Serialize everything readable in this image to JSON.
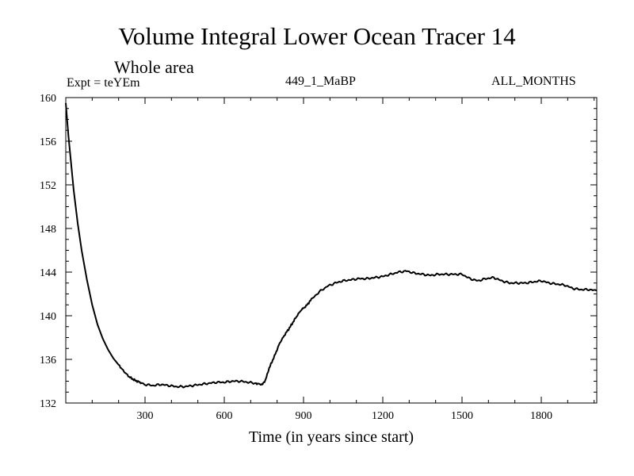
{
  "header": {
    "title": "Volume Integral Lower Ocean Tracer 14",
    "subtitle": "Whole area",
    "expt_label": "Expt = teYEm",
    "center_label": "449_1_MaBP",
    "right_label": "ALL_MONTHS"
  },
  "colors": {
    "line": "#000000",
    "axes": "#000000",
    "background": "#ffffff"
  },
  "chart_data": {
    "type": "line",
    "title": "Volume Integral Lower Ocean Tracer 14",
    "xlabel": "Time (in years since start)",
    "ylabel": "",
    "xlim": [
      0,
      2010
    ],
    "ylim": [
      132,
      160
    ],
    "grid": false,
    "xticks": [
      300,
      600,
      900,
      1200,
      1500,
      1800
    ],
    "yticks": [
      132,
      136,
      140,
      144,
      148,
      152,
      156,
      160
    ],
    "series": [
      {
        "name": "Lower Ocean Tracer 14",
        "x": [
          0,
          10,
          20,
          30,
          45,
          60,
          80,
          100,
          120,
          140,
          160,
          180,
          200,
          220,
          240,
          260,
          280,
          300,
          330,
          360,
          390,
          420,
          450,
          480,
          510,
          540,
          570,
          600,
          630,
          660,
          690,
          720,
          740,
          755,
          770,
          790,
          810,
          830,
          850,
          870,
          890,
          910,
          930,
          960,
          990,
          1020,
          1050,
          1080,
          1110,
          1140,
          1170,
          1200,
          1230,
          1260,
          1290,
          1320,
          1350,
          1380,
          1410,
          1440,
          1470,
          1500,
          1530,
          1560,
          1590,
          1620,
          1650,
          1680,
          1710,
          1740,
          1770,
          1800,
          1830,
          1860,
          1890,
          1920,
          1950,
          1980,
          2010
        ],
        "values": [
          159.5,
          156.5,
          154.0,
          151.5,
          148.5,
          146.0,
          143.3,
          141.0,
          139.2,
          137.9,
          136.9,
          136.1,
          135.5,
          134.9,
          134.4,
          134.1,
          133.9,
          133.7,
          133.6,
          133.7,
          133.6,
          133.5,
          133.5,
          133.6,
          133.7,
          133.8,
          133.9,
          133.9,
          134.0,
          134.0,
          133.9,
          133.8,
          133.7,
          134.0,
          135.2,
          136.3,
          137.5,
          138.3,
          139.0,
          139.8,
          140.5,
          140.9,
          141.5,
          142.2,
          142.7,
          143.0,
          143.2,
          143.3,
          143.4,
          143.4,
          143.5,
          143.6,
          143.8,
          144.0,
          144.1,
          143.9,
          143.8,
          143.7,
          143.8,
          143.8,
          143.8,
          143.8,
          143.4,
          143.2,
          143.4,
          143.5,
          143.2,
          143.0,
          143.0,
          143.0,
          143.1,
          143.2,
          143.0,
          142.9,
          142.8,
          142.5,
          142.4,
          142.4,
          142.3
        ]
      }
    ]
  }
}
